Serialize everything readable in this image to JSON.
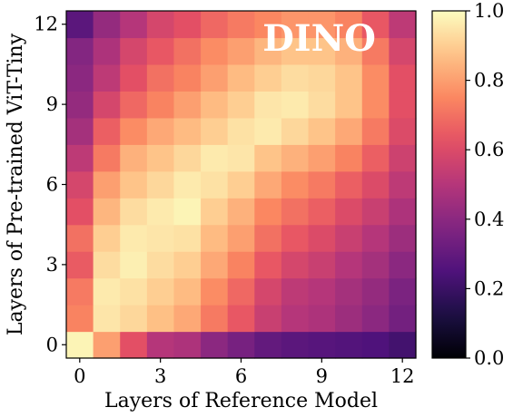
{
  "chart_data": {
    "type": "heatmap",
    "title": "DINO",
    "xlabel": "Layers of Reference Model",
    "ylabel": "Layers of Pre-trained ViT-Tiny",
    "x_categories": [
      0,
      1,
      2,
      3,
      4,
      5,
      6,
      7,
      8,
      9,
      10,
      11,
      12
    ],
    "y_categories": [
      0,
      1,
      2,
      3,
      4,
      5,
      6,
      7,
      8,
      9,
      10,
      11,
      12
    ],
    "x_ticks": [
      "0",
      "3",
      "6",
      "9",
      "12"
    ],
    "y_ticks": [
      "0",
      "3",
      "6",
      "9",
      "12"
    ],
    "colormap": "magma",
    "colorbar": {
      "vmin": 0.0,
      "vmax": 1.0,
      "ticks": [
        "0.0",
        "0.2",
        "0.4",
        "0.6",
        "0.8",
        "1.0"
      ]
    },
    "grid": false,
    "values_row_order": "y = 0 (bottom) to y = 12 (top); each row lists x = 0..12",
    "values": [
      [
        0.98,
        0.8,
        0.62,
        0.5,
        0.48,
        0.4,
        0.35,
        0.3,
        0.28,
        0.27,
        0.26,
        0.25,
        0.22
      ],
      [
        0.74,
        0.95,
        0.92,
        0.87,
        0.82,
        0.72,
        0.64,
        0.55,
        0.5,
        0.48,
        0.44,
        0.4,
        0.34
      ],
      [
        0.72,
        0.96,
        0.94,
        0.9,
        0.86,
        0.76,
        0.68,
        0.58,
        0.52,
        0.5,
        0.46,
        0.42,
        0.36
      ],
      [
        0.65,
        0.93,
        0.97,
        0.93,
        0.9,
        0.82,
        0.74,
        0.64,
        0.58,
        0.55,
        0.5,
        0.46,
        0.4
      ],
      [
        0.7,
        0.9,
        0.96,
        0.95,
        0.94,
        0.86,
        0.8,
        0.7,
        0.64,
        0.6,
        0.55,
        0.5,
        0.44
      ],
      [
        0.62,
        0.85,
        0.93,
        0.96,
        0.98,
        0.9,
        0.84,
        0.75,
        0.7,
        0.66,
        0.6,
        0.55,
        0.48
      ],
      [
        0.58,
        0.8,
        0.88,
        0.92,
        0.96,
        0.94,
        0.9,
        0.82,
        0.76,
        0.72,
        0.66,
        0.6,
        0.52
      ],
      [
        0.52,
        0.72,
        0.84,
        0.88,
        0.92,
        0.96,
        0.95,
        0.88,
        0.84,
        0.8,
        0.74,
        0.66,
        0.56
      ],
      [
        0.46,
        0.66,
        0.76,
        0.82,
        0.86,
        0.9,
        0.94,
        0.96,
        0.92,
        0.88,
        0.82,
        0.72,
        0.6
      ],
      [
        0.42,
        0.58,
        0.68,
        0.74,
        0.8,
        0.86,
        0.9,
        0.95,
        0.96,
        0.93,
        0.88,
        0.76,
        0.62
      ],
      [
        0.4,
        0.52,
        0.62,
        0.7,
        0.74,
        0.8,
        0.86,
        0.9,
        0.93,
        0.92,
        0.88,
        0.76,
        0.62
      ],
      [
        0.38,
        0.48,
        0.58,
        0.64,
        0.7,
        0.76,
        0.8,
        0.85,
        0.88,
        0.88,
        0.84,
        0.72,
        0.58
      ],
      [
        0.28,
        0.42,
        0.5,
        0.58,
        0.62,
        0.68,
        0.72,
        0.75,
        0.78,
        0.78,
        0.74,
        0.64,
        0.52
      ]
    ]
  },
  "colors": {
    "magma_stops": [
      "#000004",
      "#1c1044",
      "#4f127b",
      "#812581",
      "#b5367a",
      "#e55064",
      "#fb8761",
      "#fec287",
      "#fcfdbf"
    ],
    "title_color": "#ffffff"
  }
}
